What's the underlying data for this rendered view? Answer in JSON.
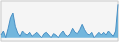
{
  "chart_data": {
    "type": "line",
    "x": [
      0,
      1,
      2,
      3,
      4,
      5,
      6,
      7,
      8,
      9,
      10,
      11,
      12,
      13,
      14,
      15,
      16,
      17,
      18,
      19,
      20,
      21,
      22,
      23,
      24,
      25,
      26,
      27,
      28,
      29,
      30,
      31,
      32,
      33,
      34,
      35,
      36,
      37,
      38,
      39,
      40,
      41,
      42,
      43,
      44,
      45,
      46,
      47,
      48,
      49
    ],
    "values": [
      42,
      48,
      38,
      52,
      68,
      75,
      55,
      45,
      40,
      48,
      44,
      42,
      46,
      40,
      43,
      46,
      42,
      38,
      44,
      46,
      42,
      38,
      44,
      42,
      38,
      44,
      48,
      42,
      40,
      44,
      52,
      46,
      44,
      50,
      58,
      50,
      44,
      42,
      46,
      38,
      42,
      46,
      42,
      46,
      42,
      48,
      44,
      40,
      48,
      88
    ],
    "fill_baseline": 38,
    "color": "#4a90c4",
    "fill_color": "#5aaad8",
    "background_color": "#f5f5f5",
    "xlim": [
      0,
      49
    ],
    "ylim": [
      33,
      93
    ],
    "tick_labels": false,
    "grid": false
  }
}
